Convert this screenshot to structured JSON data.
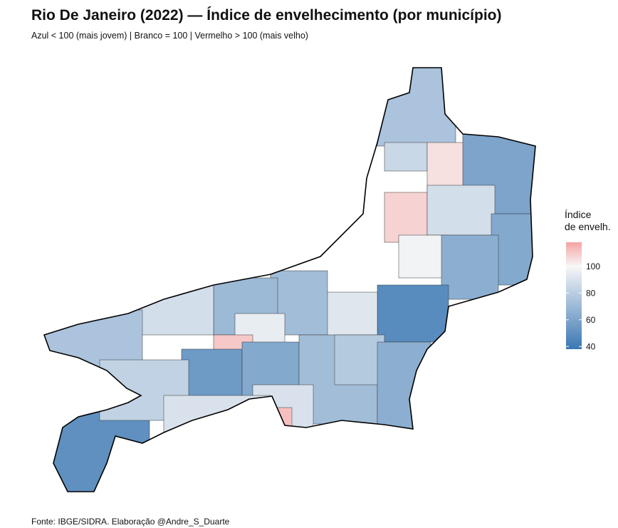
{
  "header": {
    "title": "Rio De Janeiro (2022) — Índice de envelhecimento (por município)",
    "subtitle": "Azul < 100 (mais jovem) | Branco = 100 | Vermelho > 100 (mais velho)"
  },
  "map": {
    "values": [
      75,
      85,
      105,
      60,
      108,
      88,
      62,
      98,
      65,
      48,
      92,
      72,
      70,
      88,
      75,
      95,
      110,
      55,
      62,
      72,
      78,
      65,
      90,
      112,
      50,
      82,
      90
    ],
    "limits": [
      38,
      118
    ],
    "midpoint": 100,
    "colors": {
      "low": "#3a77b3",
      "mid": "#f7f7f7",
      "high": "#f5a3a3"
    },
    "legend": {
      "title_lines": [
        "Índice",
        "de envelh."
      ],
      "ticks": [
        40,
        60,
        80,
        100
      ]
    }
  },
  "footer": {
    "source": "Fonte: IBGE/SIDRA. Elaboração @Andre_S_Duarte"
  }
}
